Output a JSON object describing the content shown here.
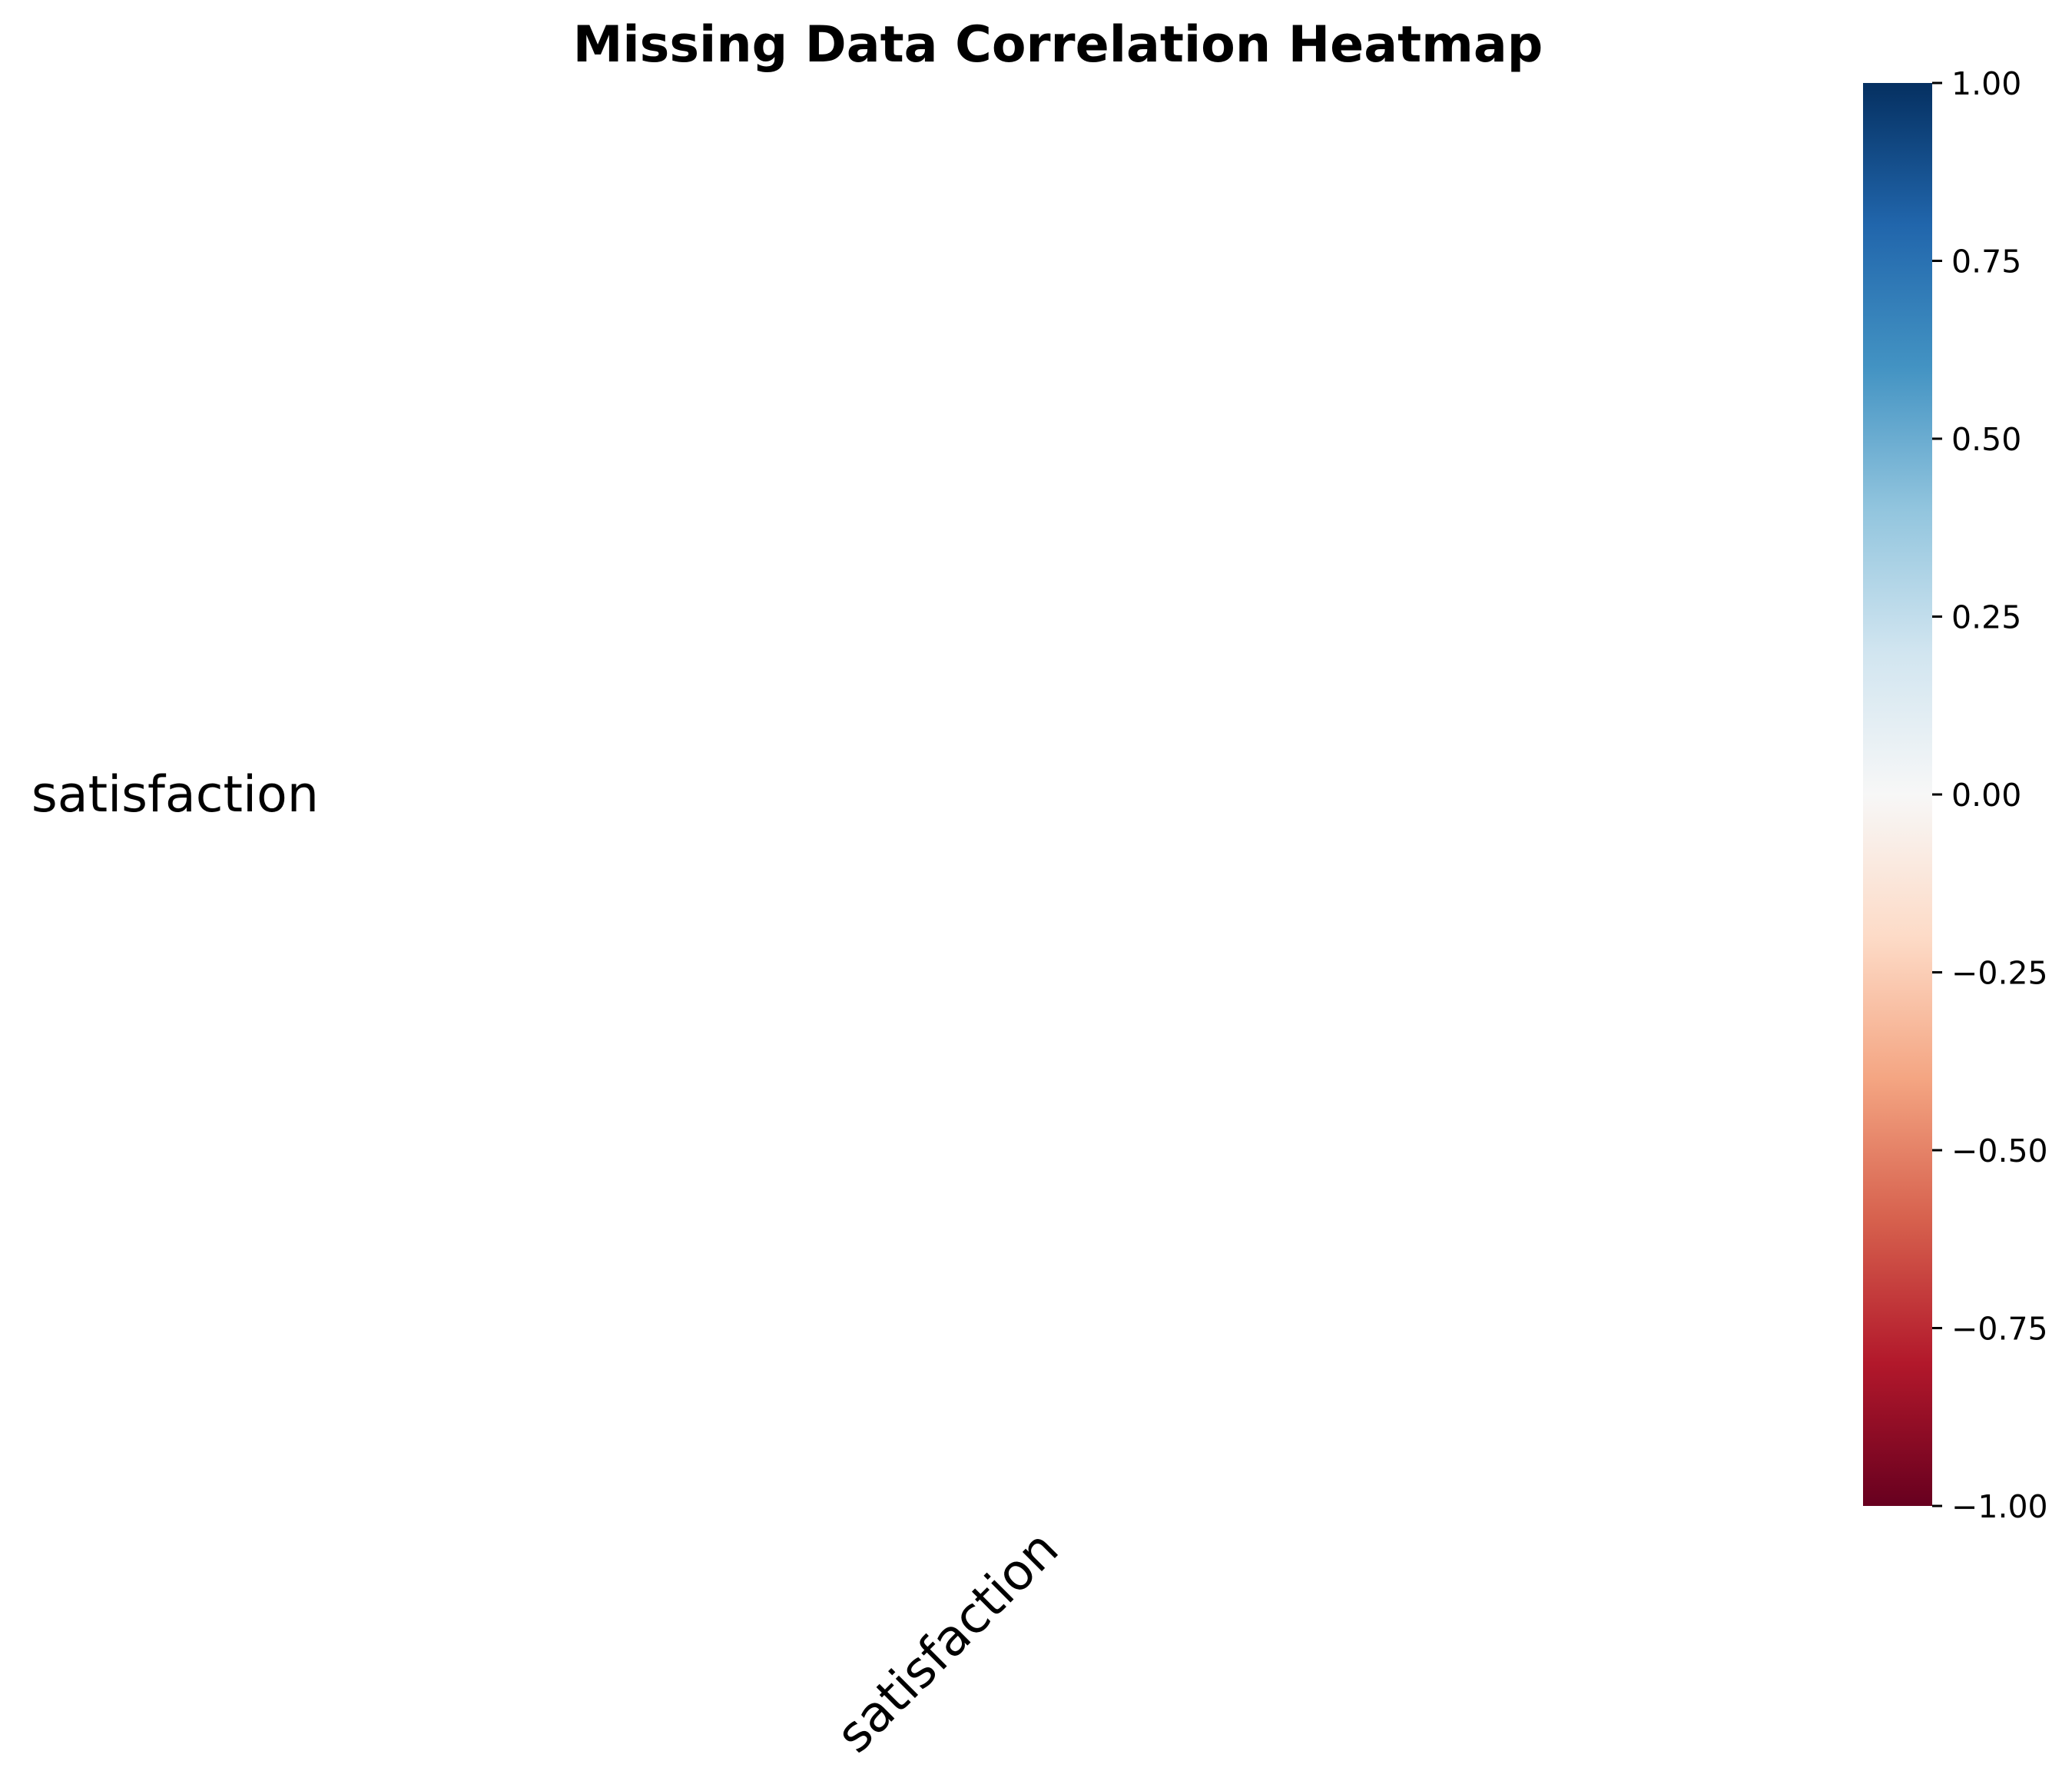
{
  "chart_data": {
    "type": "heatmap",
    "title": "Missing Data Correlation Heatmap",
    "x_categories": [
      "satisfaction"
    ],
    "y_categories": [
      "satisfaction"
    ],
    "values": [
      [
        null
      ]
    ],
    "colorbar": {
      "colormap": "RdBu",
      "range": [
        -1.0,
        1.0
      ],
      "ticks": [
        1.0,
        0.75,
        0.5,
        0.25,
        0.0,
        -0.25,
        -0.5,
        -0.75,
        -1.0
      ],
      "tick_labels": [
        "1.00",
        "0.75",
        "0.50",
        "0.25",
        "0.00",
        "−0.25",
        "−0.50",
        "−0.75",
        "−1.00"
      ],
      "colors": [
        "#67001f",
        "#b2182b",
        "#d6604d",
        "#f4a582",
        "#fddbc7",
        "#f7f7f7",
        "#d1e5f0",
        "#92c5de",
        "#4393c3",
        "#2166ac",
        "#053061"
      ]
    },
    "grid": false
  }
}
